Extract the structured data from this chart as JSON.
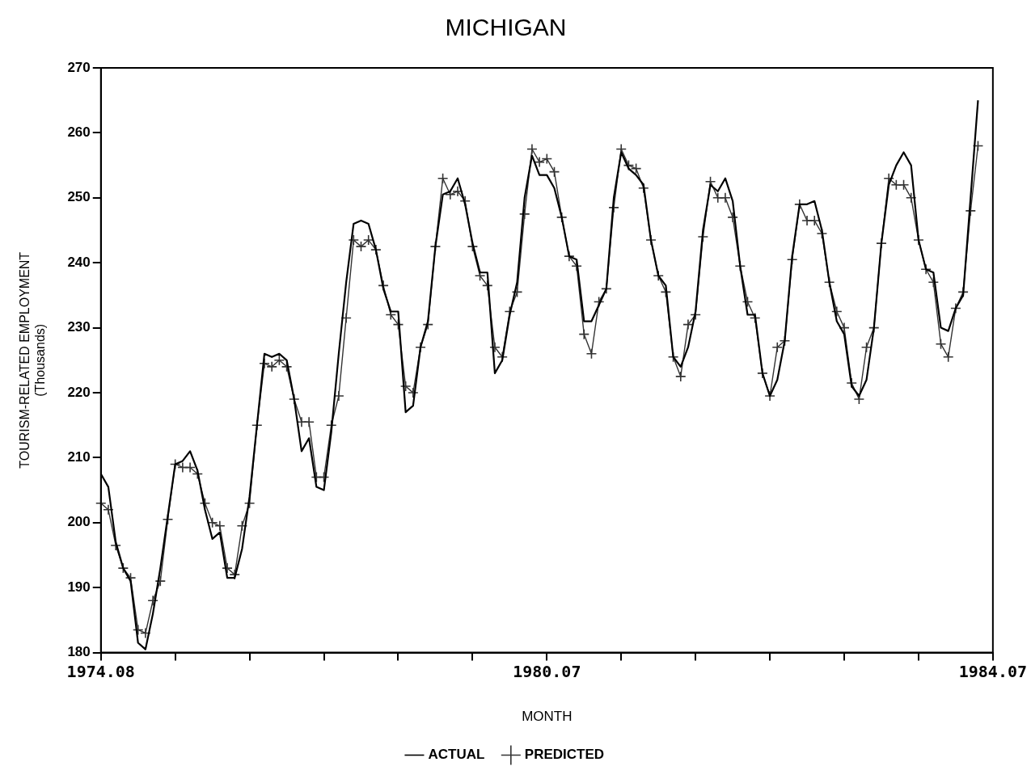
{
  "chart_data": {
    "type": "line",
    "title": "MICHIGAN",
    "xlabel": "MONTH",
    "ylabel": "TOURISM-RELATED EMPLOYMENT\n(Thousands)",
    "categories": [
      "1974.08",
      null,
      null,
      null,
      null,
      null,
      null,
      null,
      null,
      null,
      null,
      null,
      null,
      null,
      null,
      null,
      null,
      null,
      null,
      null,
      null,
      null,
      null,
      null,
      null,
      null,
      null,
      null,
      null,
      null,
      null,
      null,
      null,
      null,
      null,
      null,
      null,
      null,
      null,
      null,
      null,
      null,
      null,
      null,
      null,
      null,
      null,
      null,
      null,
      null,
      null,
      null,
      null,
      null,
      null,
      null,
      null,
      null,
      null,
      null,
      "1980.07",
      null,
      null,
      null,
      null,
      null,
      null,
      null,
      null,
      null,
      null,
      null,
      null,
      null,
      null,
      null,
      null,
      null,
      null,
      null,
      null,
      null,
      null,
      null,
      null,
      null,
      null,
      null,
      null,
      null,
      null,
      null,
      null,
      null,
      null,
      null,
      null,
      null,
      null,
      null,
      null,
      null,
      null,
      null,
      null,
      null,
      null,
      null,
      null,
      null,
      null,
      null,
      null,
      null,
      null,
      null,
      null,
      null,
      null,
      null,
      "1984.07"
    ],
    "series": [
      {
        "name": "ACTUAL",
        "color": "#000000",
        "marker": "none",
        "values": [
          207.5,
          205.5,
          197,
          193,
          191,
          181.5,
          180.5,
          186,
          193,
          201,
          209,
          209.5,
          211,
          208,
          202,
          197.5,
          198.5,
          191.5,
          191.5,
          196,
          204,
          215,
          226,
          225.5,
          226,
          225,
          219,
          211,
          213,
          205.5,
          205,
          214,
          226,
          237,
          246,
          246.5,
          246,
          242,
          236,
          232.5,
          232.5,
          217,
          218,
          227,
          231,
          242.5,
          250.5,
          251,
          253,
          249,
          243,
          238.5,
          238.5,
          223,
          225,
          232,
          237,
          250,
          256.5,
          253.5,
          253.5,
          251.5,
          247,
          241,
          240.5,
          231,
          231,
          233.5,
          236,
          250,
          257,
          254.5,
          253.5,
          252,
          243.5,
          238,
          236.5,
          225.5,
          224,
          227,
          232.5,
          245,
          252,
          251,
          253,
          249.5,
          239.5,
          232,
          232,
          223,
          219.5,
          222,
          228,
          241,
          249,
          249,
          249.5,
          245,
          237,
          231,
          229,
          221,
          219.5,
          222,
          230,
          243,
          252,
          255,
          257,
          255,
          243.5,
          239,
          238.5,
          230,
          229.5,
          233,
          235,
          250,
          265,
          null,
          null
        ]
      },
      {
        "name": "PREDICTED",
        "color": "#333333",
        "marker": "cross",
        "values": [
          203,
          202,
          196.5,
          193,
          191.5,
          183.5,
          183,
          188,
          191,
          200.5,
          209,
          208.5,
          208.5,
          207.5,
          203,
          200,
          199.5,
          193,
          192,
          199.5,
          203,
          215,
          224.5,
          224,
          225,
          224,
          219,
          215.5,
          215.5,
          207,
          207,
          215,
          219.5,
          231.5,
          243.5,
          242.5,
          243.5,
          242,
          236.5,
          232,
          230.5,
          221,
          220,
          227,
          230.5,
          242.5,
          253,
          250.5,
          251,
          249.5,
          242.5,
          238,
          236.5,
          227,
          225.5,
          232.5,
          235.5,
          247.5,
          257.5,
          255.5,
          256,
          254,
          247,
          241,
          239.5,
          229,
          226,
          234,
          236,
          248.5,
          257.5,
          255,
          254.5,
          251.5,
          243.5,
          238,
          235.5,
          225.5,
          222.5,
          230.5,
          232,
          244,
          252.5,
          250,
          250,
          247,
          239.5,
          234,
          231.5,
          223,
          219.5,
          227,
          228,
          240.5,
          249,
          246.5,
          246.5,
          244.5,
          237,
          232.5,
          230,
          221.5,
          219,
          227,
          230,
          243,
          253,
          252,
          252,
          250,
          243.5,
          239,
          237,
          227.5,
          225.5,
          233,
          235.5,
          248,
          258,
          null,
          null
        ]
      }
    ],
    "ylim": [
      180,
      270
    ],
    "yticks": [
      180,
      190,
      200,
      210,
      220,
      230,
      240,
      250,
      260,
      270
    ],
    "grid": false,
    "legend": "bottom"
  }
}
